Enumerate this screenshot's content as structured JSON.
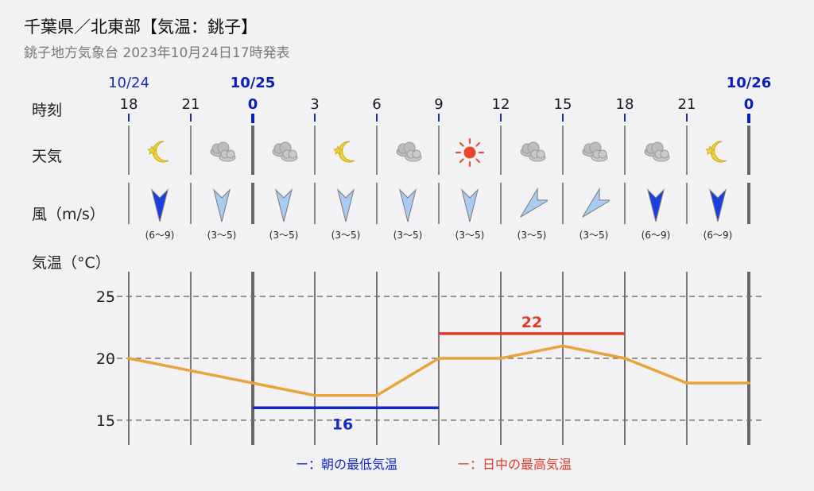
{
  "header": {
    "title": "千葉県／北東部【気温：銚子】",
    "subtitle": "銚子地方気象台 2023年10月24日17時発表"
  },
  "row_labels": {
    "time": "時刻",
    "weather": "天気",
    "wind": "風（m/s）",
    "temp": "気温（°C）"
  },
  "dates": [
    {
      "label": "10/24",
      "bold": false
    },
    {
      "label": "10/25",
      "bold": true
    },
    {
      "label": "10/26",
      "bold": true
    }
  ],
  "hours": [
    "18",
    "21",
    "0",
    "3",
    "6",
    "9",
    "12",
    "15",
    "18",
    "21",
    "0"
  ],
  "weather": [
    "moon",
    "cloud",
    "cloud",
    "moon",
    "cloud",
    "sun",
    "cloud",
    "cloud",
    "cloud",
    "moon"
  ],
  "wind": [
    {
      "dir": "S",
      "speed": "(6〜9)",
      "strong": true
    },
    {
      "dir": "S",
      "speed": "(3〜5)",
      "strong": false
    },
    {
      "dir": "S",
      "speed": "(3〜5)",
      "strong": false
    },
    {
      "dir": "S",
      "speed": "(3〜5)",
      "strong": false
    },
    {
      "dir": "S",
      "speed": "(3〜5)",
      "strong": false
    },
    {
      "dir": "S",
      "speed": "(3〜5)",
      "strong": false
    },
    {
      "dir": "SW",
      "speed": "(3〜5)",
      "strong": false
    },
    {
      "dir": "SW",
      "speed": "(3〜5)",
      "strong": false
    },
    {
      "dir": "S",
      "speed": "(6〜9)",
      "strong": true
    },
    {
      "dir": "S",
      "speed": "(6〜9)",
      "strong": true
    }
  ],
  "colors": {
    "temp_line": "#e8a33a",
    "min_bar": "#1428c8",
    "max_bar": "#e03a2e",
    "arrow_strong": "#1a3fe0",
    "arrow_light": "#a9cdf2",
    "grid": "#777777"
  },
  "chart_data": {
    "type": "line",
    "x": [
      "18",
      "21",
      "0",
      "3",
      "6",
      "9",
      "12",
      "15",
      "18",
      "21",
      "0"
    ],
    "series": [
      {
        "values": [
          20,
          19,
          18,
          17,
          17,
          20,
          20,
          21,
          20,
          18,
          18
        ]
      }
    ],
    "ylim": [
      13,
      27
    ],
    "yticks": [
      15,
      20,
      25
    ],
    "grid": true,
    "min_temp": {
      "value": 16,
      "label": "16",
      "from_index": 2,
      "to_index": 5
    },
    "max_temp": {
      "value": 22,
      "label": "22",
      "from_index": 5,
      "to_index": 8
    }
  },
  "legend": {
    "min_label": "ー：朝の最低気温",
    "max_label": "ー：日中の最高気温"
  }
}
